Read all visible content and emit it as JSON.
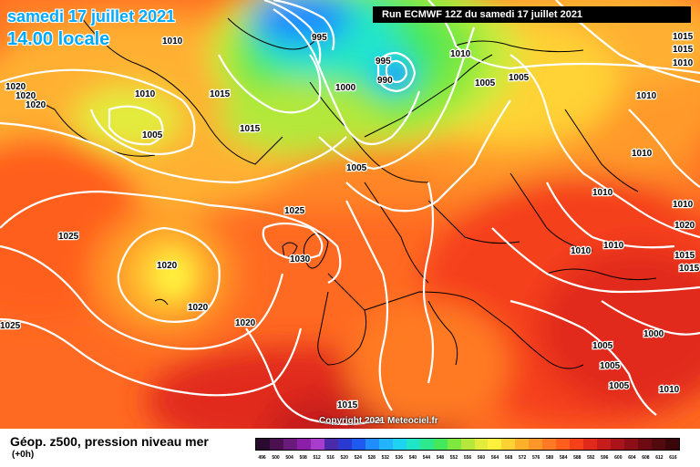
{
  "title_date": "samedi 17 juillet 2021",
  "title_time": "14.00 locale",
  "run_label": "Run ECMWF 12Z du samedi 17 juillet 2021",
  "copyright": "Copyright 2021 Meteociel.fr",
  "legend": {
    "title": "Géop. z500, pression niveau mer",
    "subtitle": "(+0h)",
    "ticks": [
      "496",
      "500",
      "504",
      "508",
      "512",
      "516",
      "520",
      "524",
      "528",
      "532",
      "536",
      "540",
      "544",
      "548",
      "552",
      "556",
      "560",
      "564",
      "568",
      "572",
      "576",
      "580",
      "584",
      "588",
      "592",
      "596",
      "600",
      "604",
      "608",
      "612",
      "616"
    ],
    "colors": [
      "#2b0a2f",
      "#4a1050",
      "#6a1a7a",
      "#8c1fa8",
      "#a83ccc",
      "#4a2aa8",
      "#2a3ad0",
      "#1e5af0",
      "#1f8cff",
      "#22b4ff",
      "#1ed2f2",
      "#20e6c8",
      "#2ee88e",
      "#45e85a",
      "#7ee83e",
      "#b4e83a",
      "#e2ec3c",
      "#fff03c",
      "#ffd234",
      "#ffb12c",
      "#ff9628",
      "#ff7a22",
      "#ff5e1c",
      "#f5401a",
      "#e12a1c",
      "#c61c1c",
      "#a8141a",
      "#8c0e16",
      "#6e0a12",
      "#520a0e",
      "#3a060a"
    ]
  },
  "isobar_labels": [
    {
      "text": "1010",
      "id": "iso-1010-a"
    },
    {
      "text": "1020",
      "id": "iso-1020-a"
    },
    {
      "text": "1020",
      "id": "iso-1020-b"
    },
    {
      "text": "1020",
      "id": "iso-1020-c"
    },
    {
      "text": "1010",
      "id": "iso-1010-b"
    },
    {
      "text": "1005",
      "id": "iso-1005-a"
    },
    {
      "text": "1015",
      "id": "iso-1015-a"
    },
    {
      "text": "1015",
      "id": "iso-1015-b"
    },
    {
      "text": "995",
      "id": "iso-995-a"
    },
    {
      "text": "995",
      "id": "iso-995-b"
    },
    {
      "text": "990",
      "id": "iso-990"
    },
    {
      "text": "1000",
      "id": "iso-1000"
    },
    {
      "text": "1005",
      "id": "iso-1005-b"
    },
    {
      "text": "1010",
      "id": "iso-1010-c"
    },
    {
      "text": "1005",
      "id": "iso-1005-c"
    },
    {
      "text": "1005",
      "id": "iso-1005-d"
    },
    {
      "text": "1015",
      "id": "iso-1015-c"
    },
    {
      "text": "1015",
      "id": "iso-1015-d"
    },
    {
      "text": "1010",
      "id": "iso-1010-d"
    },
    {
      "text": "1010",
      "id": "iso-1010-e"
    },
    {
      "text": "1010",
      "id": "iso-1010-f"
    },
    {
      "text": "1010",
      "id": "iso-1010-g"
    },
    {
      "text": "1010",
      "id": "iso-1010-h"
    },
    {
      "text": "1010",
      "id": "iso-1010-i"
    },
    {
      "text": "1010",
      "id": "iso-1010-j"
    },
    {
      "text": "1025",
      "id": "iso-1025-a"
    },
    {
      "text": "1025",
      "id": "iso-1025-b"
    },
    {
      "text": "1030",
      "id": "iso-1030"
    },
    {
      "text": "1020",
      "id": "iso-1020-d"
    },
    {
      "text": "1020",
      "id": "iso-1020-e"
    },
    {
      "text": "1020",
      "id": "iso-1020-f"
    },
    {
      "text": "1025",
      "id": "iso-1025-c"
    },
    {
      "text": "1005",
      "id": "iso-1005-e"
    },
    {
      "text": "1005",
      "id": "iso-1005-f"
    },
    {
      "text": "1005",
      "id": "iso-1005-g"
    },
    {
      "text": "1000",
      "id": "iso-1000-b"
    },
    {
      "text": "1010",
      "id": "iso-1010-k"
    },
    {
      "text": "1015",
      "id": "iso-1015-e"
    },
    {
      "text": "1015",
      "id": "iso-1015-f"
    },
    {
      "text": "1015",
      "id": "iso-1015-g"
    },
    {
      "text": "1020",
      "id": "iso-1020-g"
    }
  ]
}
